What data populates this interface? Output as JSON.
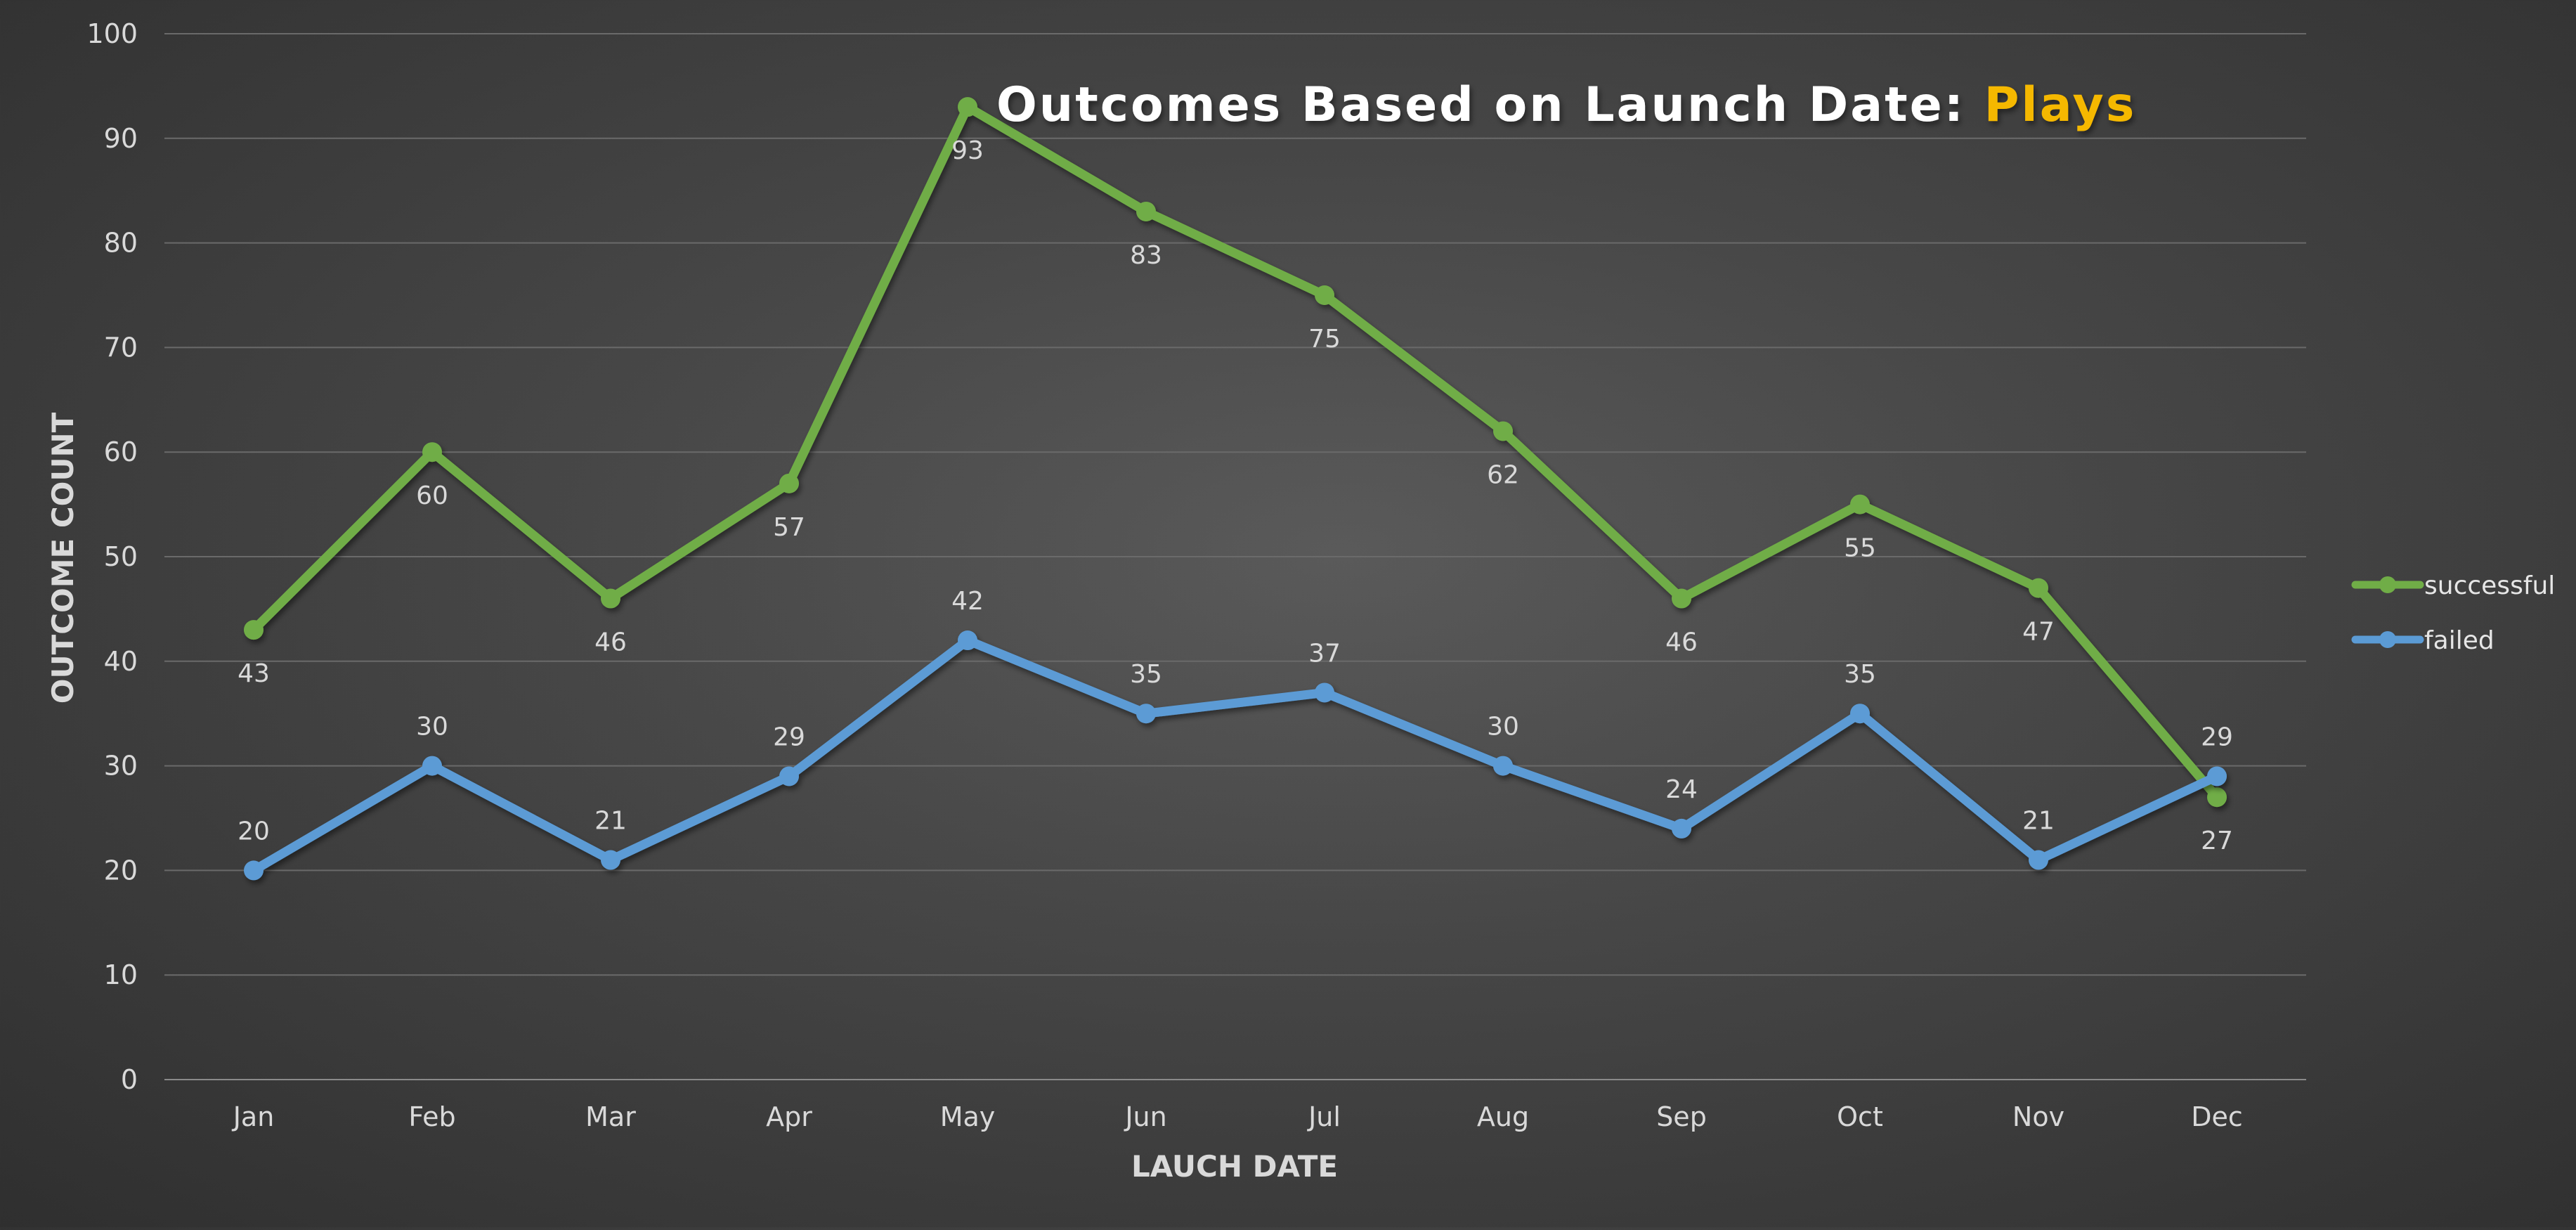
{
  "chart_data": {
    "type": "line",
    "title": "Outcomes Based on Launch Date: ",
    "title_highlight": "Plays",
    "title_color": "#ffffff",
    "title_highlight_color": "#f5b800",
    "xlabel": "LAUCH DATE",
    "ylabel": "OUTCOME COUNT",
    "ylim": [
      0,
      100
    ],
    "yticks": [
      "0",
      "10",
      "20",
      "30",
      "40",
      "50",
      "60",
      "70",
      "80",
      "90",
      "100"
    ],
    "grid": true,
    "legend_position": "right",
    "categories": [
      "Jan",
      "Feb",
      "Mar",
      "Apr",
      "May",
      "Jun",
      "Jul",
      "Aug",
      "Sep",
      "Oct",
      "Nov",
      "Dec"
    ],
    "series": [
      {
        "name": "successful",
        "color": "#70ad47",
        "label_position": "below",
        "values": [
          43,
          60,
          46,
          57,
          93,
          83,
          75,
          62,
          46,
          55,
          47,
          27
        ]
      },
      {
        "name": "failed",
        "color": "#5b9bd5",
        "label_position": "above",
        "values": [
          20,
          30,
          21,
          29,
          42,
          35,
          37,
          30,
          24,
          35,
          21,
          29
        ]
      }
    ]
  }
}
